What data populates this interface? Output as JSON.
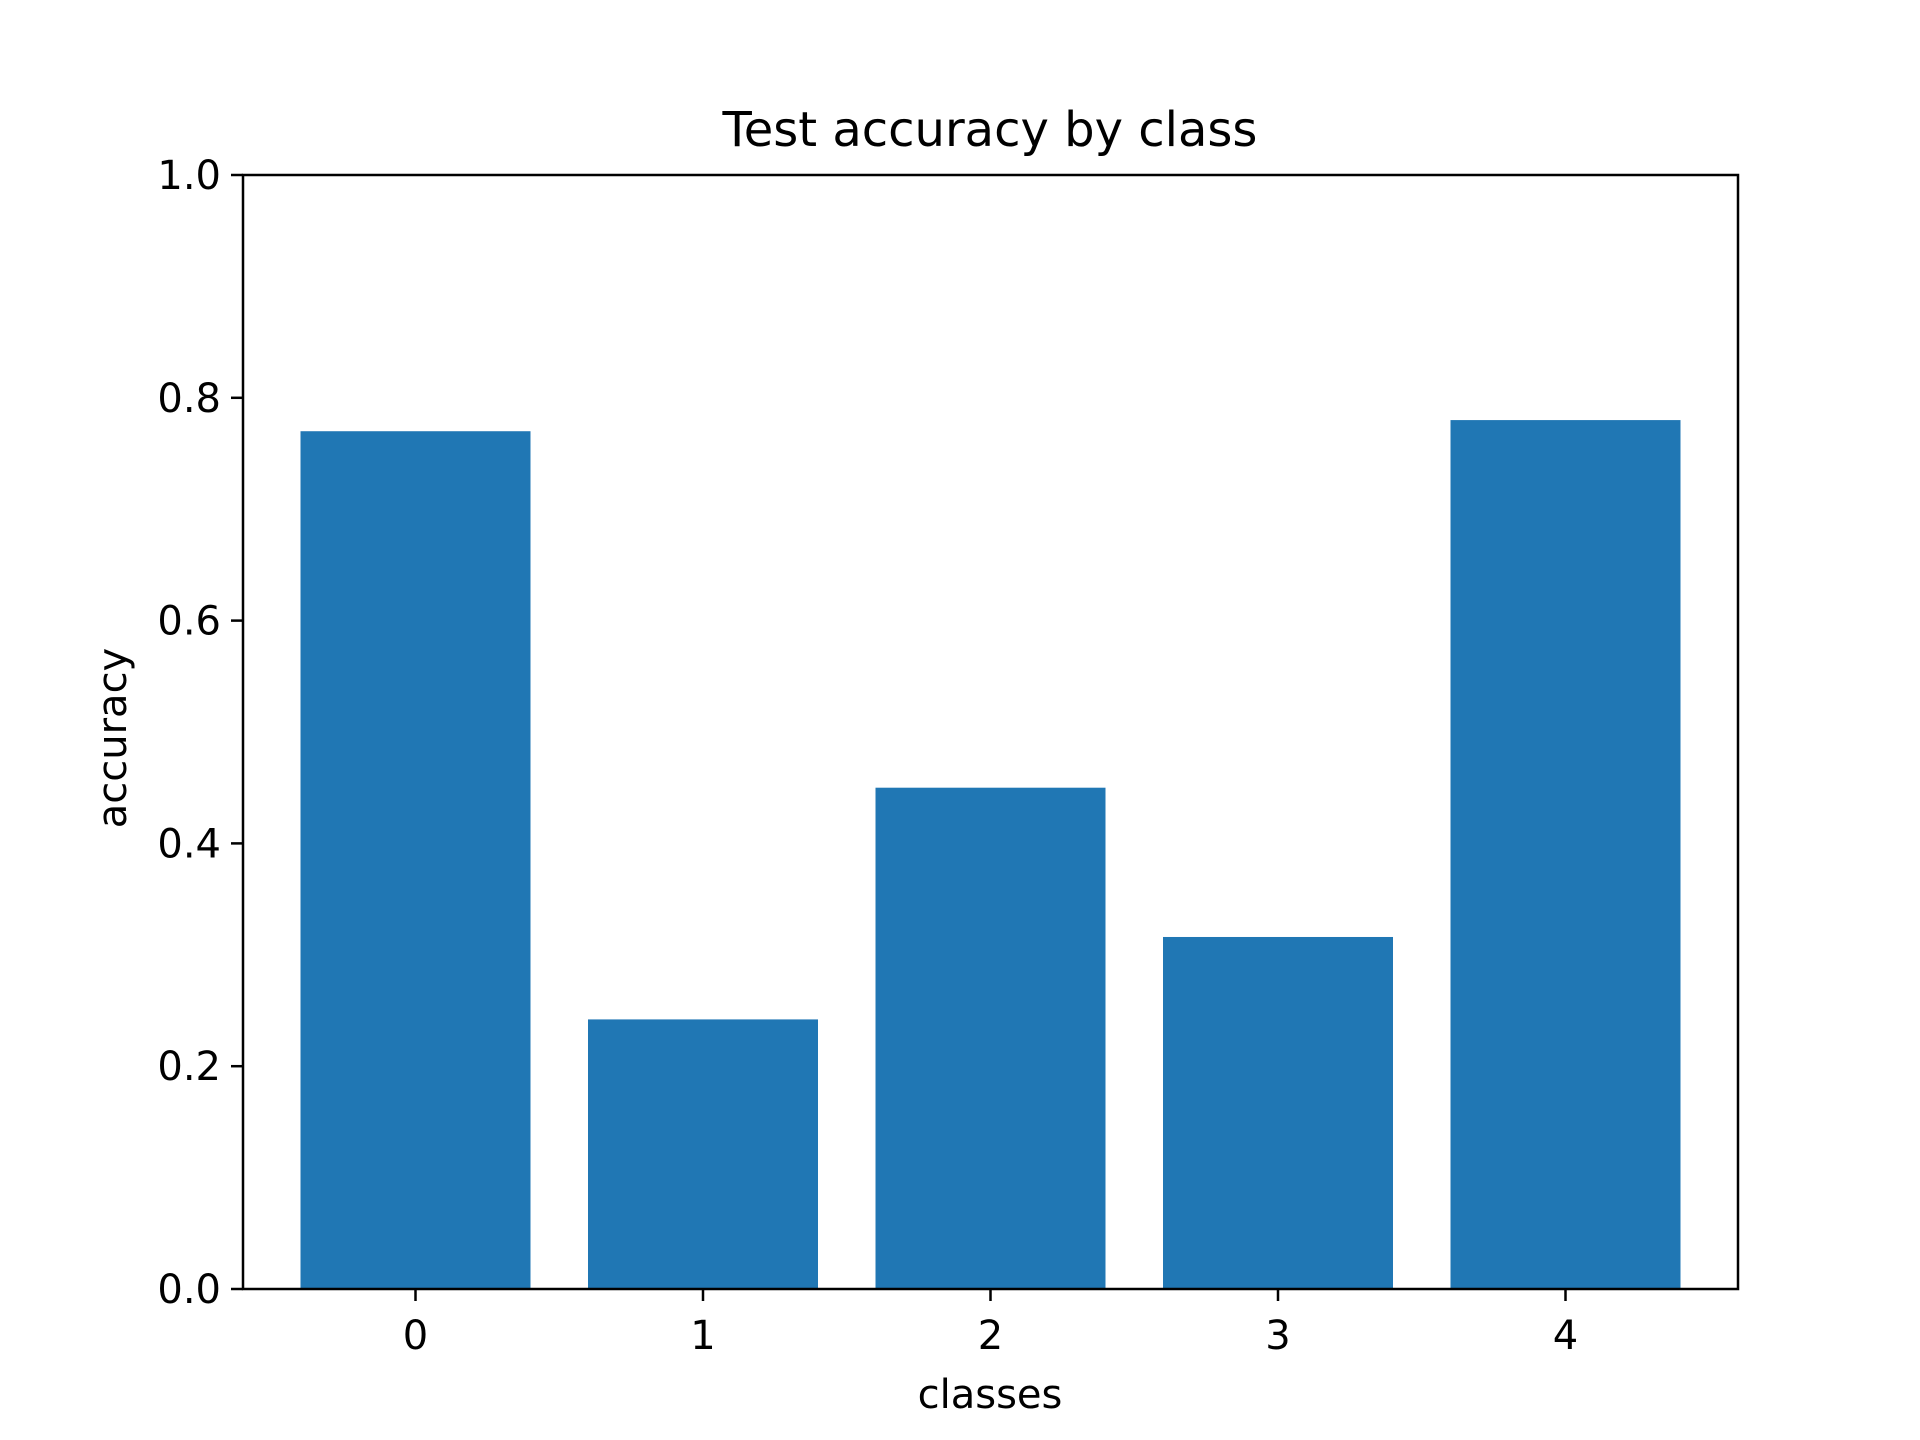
{
  "chart_data": {
    "type": "bar",
    "title": "Test accuracy by class",
    "xlabel": "classes",
    "ylabel": "accuracy",
    "categories": [
      "0",
      "1",
      "2",
      "3",
      "4"
    ],
    "values": [
      0.77,
      0.242,
      0.45,
      0.316,
      0.78
    ],
    "ylim": [
      0,
      1.0
    ],
    "yticks": [
      "0.0",
      "0.2",
      "0.4",
      "0.6",
      "0.8",
      "1.0"
    ],
    "grid": false,
    "legend": "none",
    "colors": {
      "bar": "#2077b4",
      "axis": "#000000"
    }
  }
}
